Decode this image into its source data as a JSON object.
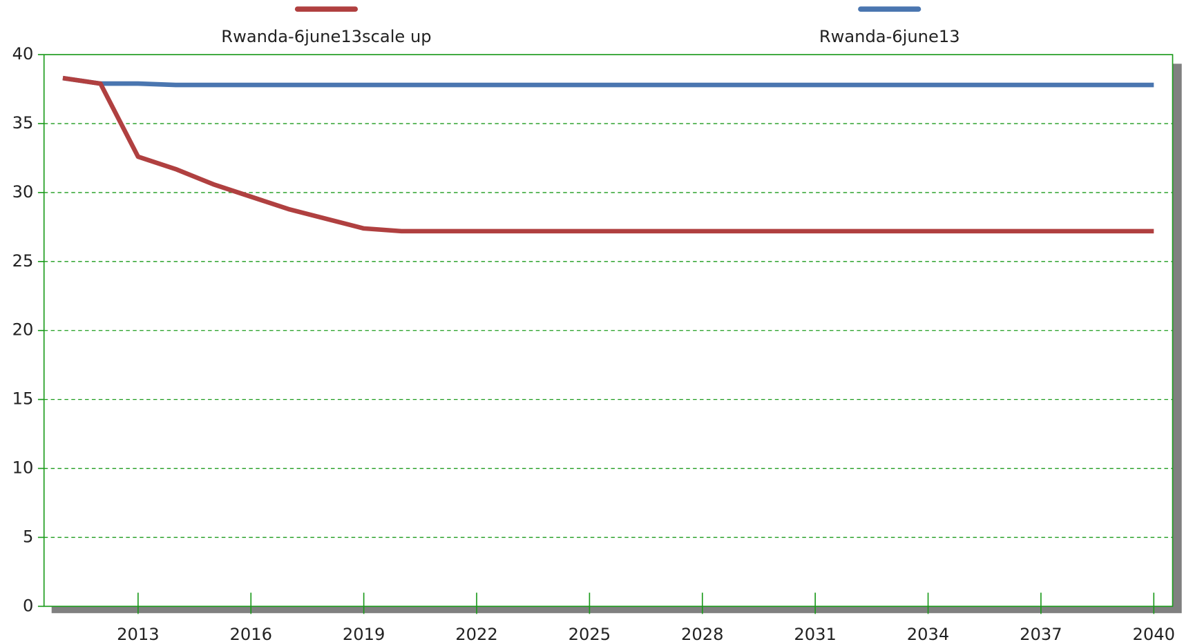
{
  "chart_data": {
    "type": "line",
    "x": [
      2011,
      2012,
      2013,
      2014,
      2015,
      2016,
      2017,
      2018,
      2019,
      2020,
      2021,
      2022,
      2023,
      2024,
      2025,
      2026,
      2027,
      2028,
      2029,
      2030,
      2031,
      2032,
      2033,
      2034,
      2035,
      2036,
      2037,
      2038,
      2039,
      2040
    ],
    "series": [
      {
        "name": "Rwanda-6june13scale up",
        "color": "#b04040",
        "values": [
          38.3,
          37.9,
          32.6,
          31.7,
          30.6,
          29.7,
          28.8,
          28.1,
          27.4,
          27.2,
          27.2,
          27.2,
          27.2,
          27.2,
          27.2,
          27.2,
          27.2,
          27.2,
          27.2,
          27.2,
          27.2,
          27.2,
          27.2,
          27.2,
          27.2,
          27.2,
          27.2,
          27.2,
          27.2,
          27.2
        ]
      },
      {
        "name": "Rwanda-6june13",
        "color": "#4a76b0",
        "values": [
          38.3,
          37.9,
          37.9,
          37.8,
          37.8,
          37.8,
          37.8,
          37.8,
          37.8,
          37.8,
          37.8,
          37.8,
          37.8,
          37.8,
          37.8,
          37.8,
          37.8,
          37.8,
          37.8,
          37.8,
          37.8,
          37.8,
          37.8,
          37.8,
          37.8,
          37.8,
          37.8,
          37.8,
          37.8,
          37.8
        ]
      }
    ],
    "xlim": [
      2010.5,
      2040.5
    ],
    "xticks": [
      2013,
      2016,
      2019,
      2022,
      2025,
      2028,
      2031,
      2034,
      2037,
      2040
    ],
    "ylim": [
      0,
      40
    ],
    "yticks": [
      0,
      5,
      10,
      15,
      20,
      25,
      30,
      35,
      40
    ],
    "grid": true
  }
}
